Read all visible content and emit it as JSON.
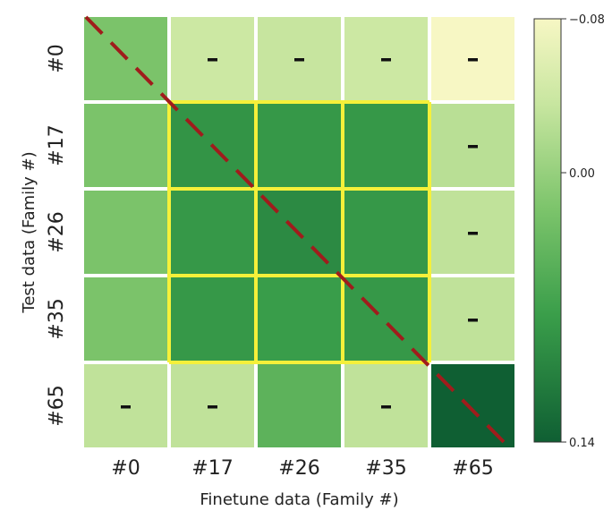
{
  "chart_data": {
    "type": "heatmap",
    "xlabel": "Finetune data (Family #)",
    "ylabel": "Test data (Family #)",
    "x_categories": [
      "#0",
      "#17",
      "#26",
      "#35",
      "#65"
    ],
    "y_categories": [
      "#0",
      "#17",
      "#26",
      "#35",
      "#65"
    ],
    "values": [
      [
        0.02,
        -0.04,
        -0.035,
        -0.04,
        -0.08
      ],
      [
        0.02,
        0.085,
        0.08,
        0.08,
        -0.025
      ],
      [
        0.02,
        0.08,
        0.095,
        0.08,
        -0.03
      ],
      [
        0.02,
        0.08,
        0.075,
        0.08,
        -0.03
      ],
      [
        -0.03,
        -0.03,
        0.045,
        -0.03,
        0.14
      ]
    ],
    "dash_marks": [
      [
        false,
        true,
        true,
        true,
        true
      ],
      [
        false,
        false,
        false,
        false,
        true
      ],
      [
        false,
        false,
        false,
        false,
        true
      ],
      [
        false,
        false,
        false,
        false,
        true
      ],
      [
        true,
        true,
        false,
        true,
        false
      ]
    ],
    "dash_symbol": "–",
    "highlight_block": {
      "rows": [
        "#17",
        "#26",
        "#35"
      ],
      "cols": [
        "#17",
        "#26",
        "#35"
      ],
      "color": "#f5f03a"
    },
    "diagonal_line": {
      "color": "#a01c1c",
      "style": "dashed"
    },
    "colorbar": {
      "min": -0.08,
      "max": 0.14,
      "ticks": [
        -0.08,
        0.0,
        0.14
      ],
      "tick_labels": [
        "−0.08",
        "0.00",
        "0.14"
      ],
      "colormap": "Greens",
      "top_color": "#f7f7c4",
      "bottom_color": "#0f5f33"
    }
  }
}
